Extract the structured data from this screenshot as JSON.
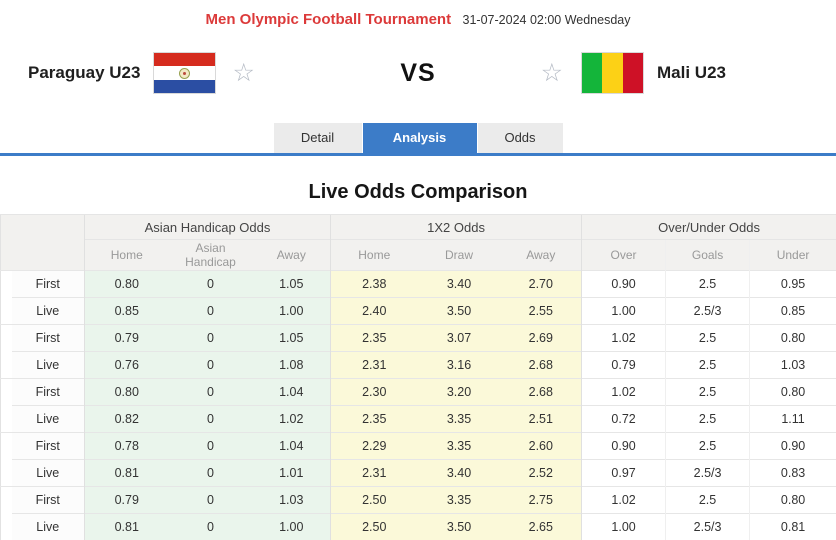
{
  "header": {
    "tournament": "Men Olympic Football Tournament",
    "datetime": "31-07-2024 02:00 Wednesday"
  },
  "match": {
    "home": {
      "name": "Paraguay U23",
      "flag": "paraguay-flag"
    },
    "away": {
      "name": "Mali U23",
      "flag": "mali-flag"
    },
    "vs_label": "VS",
    "favorite_icon": "☆"
  },
  "tabs": [
    {
      "label": "Detail",
      "active": false
    },
    {
      "label": "Analysis",
      "active": true
    },
    {
      "label": "Odds",
      "active": false
    }
  ],
  "section_title": "Live Odds Comparison",
  "colors": {
    "accent_blue": "#3c7cc8",
    "title_red": "#dc3a3a",
    "asian_handicap_bg": "#eaf5ec",
    "x12_bg": "#fbf9d9"
  },
  "table": {
    "groups": [
      "Asian Handicap Odds",
      "1X2 Odds",
      "Over/Under Odds"
    ],
    "subheaders": {
      "asian_handicap": [
        "Home",
        "Asian Handicap",
        "Away"
      ],
      "x12": [
        "Home",
        "Draw",
        "Away"
      ],
      "over_under": [
        "Over",
        "Goals",
        "Under"
      ]
    },
    "rows": [
      {
        "label": "First",
        "asian_handicap": [
          "0.80",
          "0",
          "1.05"
        ],
        "x12": [
          "2.38",
          "3.40",
          "2.70"
        ],
        "over_under": [
          "0.90",
          "2.5",
          "0.95"
        ]
      },
      {
        "label": "Live",
        "asian_handicap": [
          "0.85",
          "0",
          "1.00"
        ],
        "x12": [
          "2.40",
          "3.50",
          "2.55"
        ],
        "over_under": [
          "1.00",
          "2.5/3",
          "0.85"
        ]
      },
      {
        "label": "First",
        "asian_handicap": [
          "0.79",
          "0",
          "1.05"
        ],
        "x12": [
          "2.35",
          "3.07",
          "2.69"
        ],
        "over_under": [
          "1.02",
          "2.5",
          "0.80"
        ]
      },
      {
        "label": "Live",
        "asian_handicap": [
          "0.76",
          "0",
          "1.08"
        ],
        "x12": [
          "2.31",
          "3.16",
          "2.68"
        ],
        "over_under": [
          "0.79",
          "2.5",
          "1.03"
        ]
      },
      {
        "label": "First",
        "asian_handicap": [
          "0.80",
          "0",
          "1.04"
        ],
        "x12": [
          "2.30",
          "3.20",
          "2.68"
        ],
        "over_under": [
          "1.02",
          "2.5",
          "0.80"
        ]
      },
      {
        "label": "Live",
        "asian_handicap": [
          "0.82",
          "0",
          "1.02"
        ],
        "x12": [
          "2.35",
          "3.35",
          "2.51"
        ],
        "over_under": [
          "0.72",
          "2.5",
          "1.11"
        ]
      },
      {
        "label": "First",
        "asian_handicap": [
          "0.78",
          "0",
          "1.04"
        ],
        "x12": [
          "2.29",
          "3.35",
          "2.60"
        ],
        "over_under": [
          "0.90",
          "2.5",
          "0.90"
        ]
      },
      {
        "label": "Live",
        "asian_handicap": [
          "0.81",
          "0",
          "1.01"
        ],
        "x12": [
          "2.31",
          "3.40",
          "2.52"
        ],
        "over_under": [
          "0.97",
          "2.5/3",
          "0.83"
        ]
      },
      {
        "label": "First",
        "asian_handicap": [
          "0.79",
          "0",
          "1.03"
        ],
        "x12": [
          "2.50",
          "3.35",
          "2.75"
        ],
        "over_under": [
          "1.02",
          "2.5",
          "0.80"
        ]
      },
      {
        "label": "Live",
        "asian_handicap": [
          "0.81",
          "0",
          "1.00"
        ],
        "x12": [
          "2.50",
          "3.50",
          "2.65"
        ],
        "over_under": [
          "1.00",
          "2.5/3",
          "0.81"
        ]
      }
    ]
  }
}
